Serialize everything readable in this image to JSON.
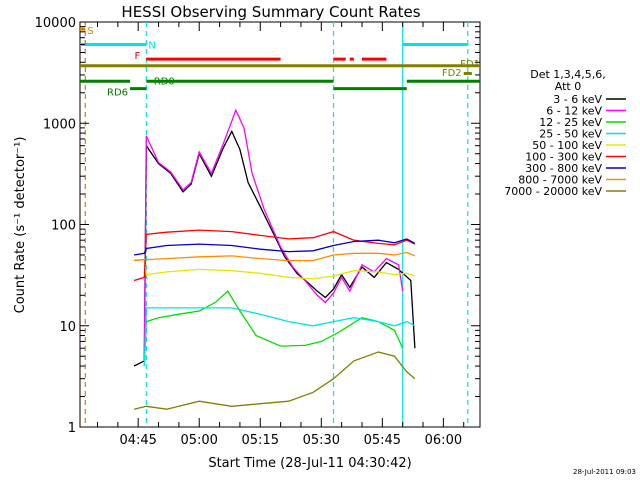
{
  "chart_data": {
    "type": "line",
    "title": "HESSI Observing Summary Count Rates",
    "xlabel": "Start Time (28-Jul-11 04:30:42)",
    "ylabel": "Count Rate (s⁻¹ detector⁻¹)",
    "yscale": "log",
    "ylim": [
      1,
      10000
    ],
    "xlim": [
      "04:30:42",
      "06:09:00"
    ],
    "x_ticks": [
      "04:45",
      "05:00",
      "05:15",
      "05:30",
      "05:45",
      "06:00"
    ],
    "y_ticks": [
      "1",
      "10",
      "100",
      "1000",
      "10000"
    ],
    "grid": false,
    "legend_position": "right",
    "legend_header": [
      "Det 1,3,4,5,6,",
      "Att 0"
    ],
    "timestamp": "28-Jul-2011 09:03",
    "flags": [
      {
        "label": "S",
        "color": "#e07b00"
      },
      {
        "label": "N",
        "color": "#00e5e5"
      },
      {
        "label": "F",
        "color": "#ff0000"
      },
      {
        "label": "FD1",
        "color": "#808000"
      },
      {
        "label": "FD2",
        "color": "#808000"
      },
      {
        "label": "RD0",
        "color": "#008000"
      },
      {
        "label": "RD6",
        "color": "#008000"
      }
    ],
    "flag_segments": [
      {
        "flag": "S",
        "color": "#e07b00",
        "level": 8500,
        "segments": [
          [
            "04:30:42",
            "04:32:00"
          ]
        ]
      },
      {
        "flag": "N",
        "color": "#00e5e5",
        "level": 6000,
        "segments": [
          [
            "04:30:42",
            "04:47:00"
          ],
          [
            "05:50:00",
            "06:06:00"
          ]
        ]
      },
      {
        "flag": "F",
        "color": "#ff0000",
        "level": 4300,
        "segments": [
          [
            "04:47:00",
            "05:20:00"
          ],
          [
            "05:33:00",
            "05:36:00"
          ],
          [
            "05:37:00",
            "05:38:00"
          ],
          [
            "05:40:00",
            "05:46:00"
          ]
        ]
      },
      {
        "flag": "FD1",
        "color": "#808000",
        "level": 3700,
        "segments": [
          [
            "04:30:42",
            "06:09:00"
          ]
        ]
      },
      {
        "flag": "FD2",
        "color": "#808000",
        "level": 3100,
        "segments": [
          [
            "06:05:00",
            "06:07:00"
          ]
        ]
      },
      {
        "flag": "RD0",
        "color": "#008000",
        "level": 2600,
        "segments": [
          [
            "04:30:42",
            "04:43:00"
          ],
          [
            "04:47:00",
            "05:33:00"
          ],
          [
            "05:51:00",
            "06:09:00"
          ]
        ]
      },
      {
        "flag": "RD6",
        "color": "#008000",
        "level": 2200,
        "segments": [
          [
            "04:43:00",
            "04:47:00"
          ],
          [
            "05:33:00",
            "05:51:00"
          ]
        ]
      }
    ],
    "vlines": [
      {
        "time": "04:32:00",
        "color": "#e07b00",
        "style": "dashed"
      },
      {
        "time": "04:47:00",
        "color": "#00e5e5",
        "style": "dashed"
      },
      {
        "time": "05:33:00",
        "color": "#00e5e5",
        "style": "dashed"
      },
      {
        "time": "05:50:00",
        "color": "#00e5e5",
        "style": "solid"
      },
      {
        "time": "06:06:00",
        "color": "#00e5e5",
        "style": "dashed"
      }
    ],
    "series": [
      {
        "name": "3 - 6 keV",
        "color": "#000000",
        "x": [
          "04:44:00",
          "04:46:30",
          "04:47:00",
          "04:50:00",
          "04:53:00",
          "04:56:00",
          "04:58:00",
          "05:00:00",
          "05:03:00",
          "05:06:00",
          "05:08:00",
          "05:10:00",
          "05:12:00",
          "05:15:00",
          "05:18:00",
          "05:21:00",
          "05:24:00",
          "05:27:00",
          "05:29:00",
          "05:31:00",
          "05:33:00",
          "05:35:00",
          "05:37:00",
          "05:40:00",
          "05:43:00",
          "05:46:00",
          "05:49:00",
          "05:52:00",
          "05:53:00"
        ],
        "y": [
          4,
          4.5,
          600,
          400,
          320,
          210,
          250,
          500,
          300,
          580,
          830,
          550,
          260,
          150,
          85,
          48,
          33,
          26,
          22,
          19,
          23,
          32,
          24,
          38,
          30,
          42,
          36,
          28,
          6
        ]
      },
      {
        "name": "6 - 12 keV",
        "color": "#ff00ff",
        "x": [
          "04:46:30",
          "04:47:00",
          "04:50:00",
          "04:53:00",
          "04:56:00",
          "04:58:00",
          "05:00:00",
          "05:03:00",
          "05:06:00",
          "05:08:00",
          "05:09:00",
          "05:11:00",
          "05:13:00",
          "05:16:00",
          "05:20:00",
          "05:23:00",
          "05:26:00",
          "05:29:00",
          "05:31:00",
          "05:33:00",
          "05:35:00",
          "05:37:00",
          "05:40:00",
          "05:43:00",
          "05:46:00",
          "05:49:00",
          "05:50:00"
        ],
        "y": [
          5,
          750,
          410,
          330,
          220,
          260,
          520,
          320,
          640,
          1050,
          1350,
          900,
          320,
          140,
          60,
          38,
          28,
          20,
          17,
          21,
          30,
          22,
          40,
          34,
          46,
          40,
          22
        ]
      },
      {
        "name": "12 - 25 keV",
        "color": "#00e000",
        "x": [
          "04:46:30",
          "04:47:00",
          "04:50:00",
          "04:55:00",
          "05:00:00",
          "05:04:00",
          "05:07:00",
          "05:10:00",
          "05:14:00",
          "05:20:00",
          "05:26:00",
          "05:30:00",
          "05:34:00",
          "05:40:00",
          "05:44:00",
          "05:48:00",
          "05:50:00"
        ],
        "y": [
          4,
          11,
          12,
          13,
          14,
          17,
          22,
          14,
          8,
          6.3,
          6.4,
          7,
          8.5,
          12,
          11,
          9,
          6
        ]
      },
      {
        "name": "25 - 50 keV",
        "color": "#00e5e5",
        "x": [
          "04:46:30",
          "04:47:00",
          "04:52:00",
          "05:00:00",
          "05:08:00",
          "05:15:00",
          "05:22:00",
          "05:28:00",
          "05:33:00",
          "05:38:00",
          "05:44:00",
          "05:48:00",
          "05:51:00",
          "05:53:00"
        ],
        "y": [
          4,
          15,
          15,
          15,
          15,
          13,
          11,
          10,
          11,
          12,
          11,
          10,
          11,
          10
        ]
      },
      {
        "name": "50 - 100 keV",
        "color": "#e5e500",
        "x": [
          "04:44:00",
          "04:46:30",
          "04:47:00",
          "04:52:00",
          "05:00:00",
          "05:08:00",
          "05:15:00",
          "05:22:00",
          "05:28:00",
          "05:33:00",
          "05:38:00",
          "05:44:00",
          "05:48:00",
          "05:51:00",
          "05:53:00"
        ],
        "y": [
          45,
          45,
          32,
          34,
          36,
          35,
          33,
          30,
          29,
          31,
          35,
          34,
          32,
          33,
          31
        ]
      },
      {
        "name": "100 - 300 keV",
        "color": "#ff0000",
        "x": [
          "04:44:00",
          "04:46:30",
          "04:47:00",
          "04:52:00",
          "05:00:00",
          "05:08:00",
          "05:15:00",
          "05:22:00",
          "05:28:00",
          "05:33:00",
          "05:38:00",
          "05:44:00",
          "05:48:00",
          "05:51:00",
          "05:53:00"
        ],
        "y": [
          28,
          30,
          80,
          84,
          88,
          85,
          78,
          72,
          74,
          85,
          70,
          65,
          63,
          70,
          64
        ]
      },
      {
        "name": "300 - 800 keV",
        "color": "#0000cc",
        "x": [
          "04:44:00",
          "04:46:30",
          "04:47:00",
          "04:52:00",
          "05:00:00",
          "05:08:00",
          "05:15:00",
          "05:22:00",
          "05:28:00",
          "05:33:00",
          "05:38:00",
          "05:44:00",
          "05:48:00",
          "05:51:00",
          "05:53:00"
        ],
        "y": [
          50,
          52,
          58,
          62,
          64,
          62,
          57,
          54,
          55,
          62,
          68,
          70,
          66,
          72,
          65
        ]
      },
      {
        "name": "800 - 7000 keV",
        "color": "#ff8c00",
        "x": [
          "04:44:00",
          "04:46:30",
          "04:47:00",
          "04:52:00",
          "05:00:00",
          "05:08:00",
          "05:15:00",
          "05:22:00",
          "05:28:00",
          "05:33:00",
          "05:38:00",
          "05:44:00",
          "05:48:00",
          "05:51:00",
          "05:53:00"
        ],
        "y": [
          44,
          45,
          45,
          46,
          48,
          49,
          46,
          44,
          44,
          50,
          52,
          52,
          50,
          53,
          49
        ]
      },
      {
        "name": "7000 - 20000 keV",
        "color": "#808000",
        "x": [
          "04:44:00",
          "04:47:00",
          "04:52:00",
          "05:00:00",
          "05:08:00",
          "05:15:00",
          "05:22:00",
          "05:28:00",
          "05:33:00",
          "05:38:00",
          "05:44:00",
          "05:48:00",
          "05:51:00",
          "05:53:00"
        ],
        "y": [
          1.5,
          1.6,
          1.5,
          1.8,
          1.6,
          1.7,
          1.8,
          2.2,
          3,
          4.5,
          5.5,
          5,
          3.5,
          3
        ]
      }
    ]
  }
}
